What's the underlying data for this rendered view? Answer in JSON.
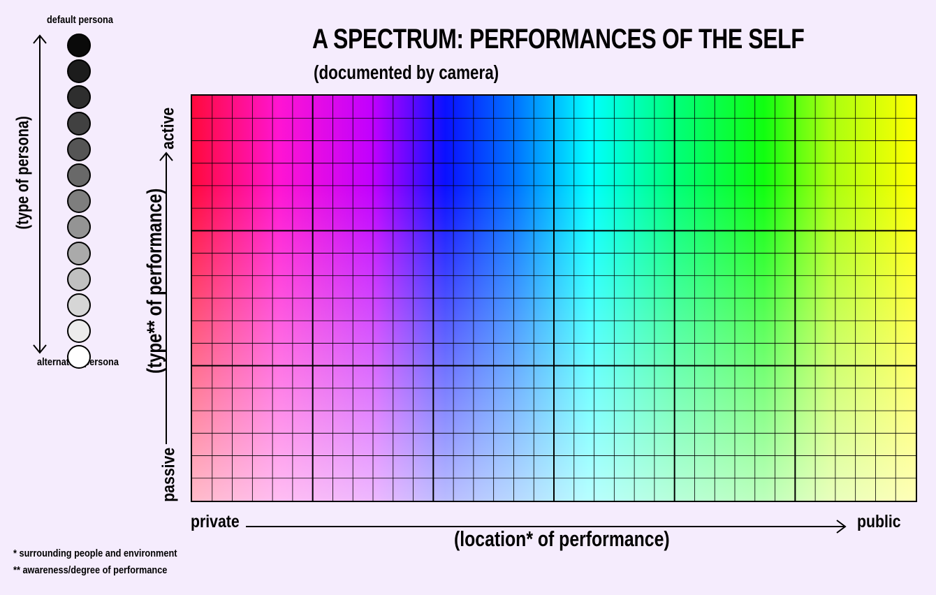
{
  "title": "A SPECTRUM: PERFORMANCES OF THE SELF",
  "subtitle": "(documented by camera)",
  "persona_scale": {
    "top_label": "default persona",
    "bottom_label": "alternative persona",
    "axis_label": "(type of persona)",
    "circle_colors": [
      "#0a0a0a",
      "#1c1c1c",
      "#2e2e2e",
      "#414141",
      "#555555",
      "#696969",
      "#7e7e7e",
      "#949494",
      "#aaaaaa",
      "#c0c0c0",
      "#d6d6d6",
      "#ececec",
      "#ffffff"
    ]
  },
  "y_axis": {
    "label": "(type** of performance)",
    "top": "active",
    "bottom": "passive"
  },
  "x_axis": {
    "label": "(location* of performance)",
    "left": "private",
    "right": "public"
  },
  "grid": {
    "columns": 36,
    "rows": 18,
    "major_column_every": 6,
    "major_row_every": 6
  },
  "footnotes": [
    "* surrounding people and environment",
    "** awareness/degree of performance"
  ]
}
